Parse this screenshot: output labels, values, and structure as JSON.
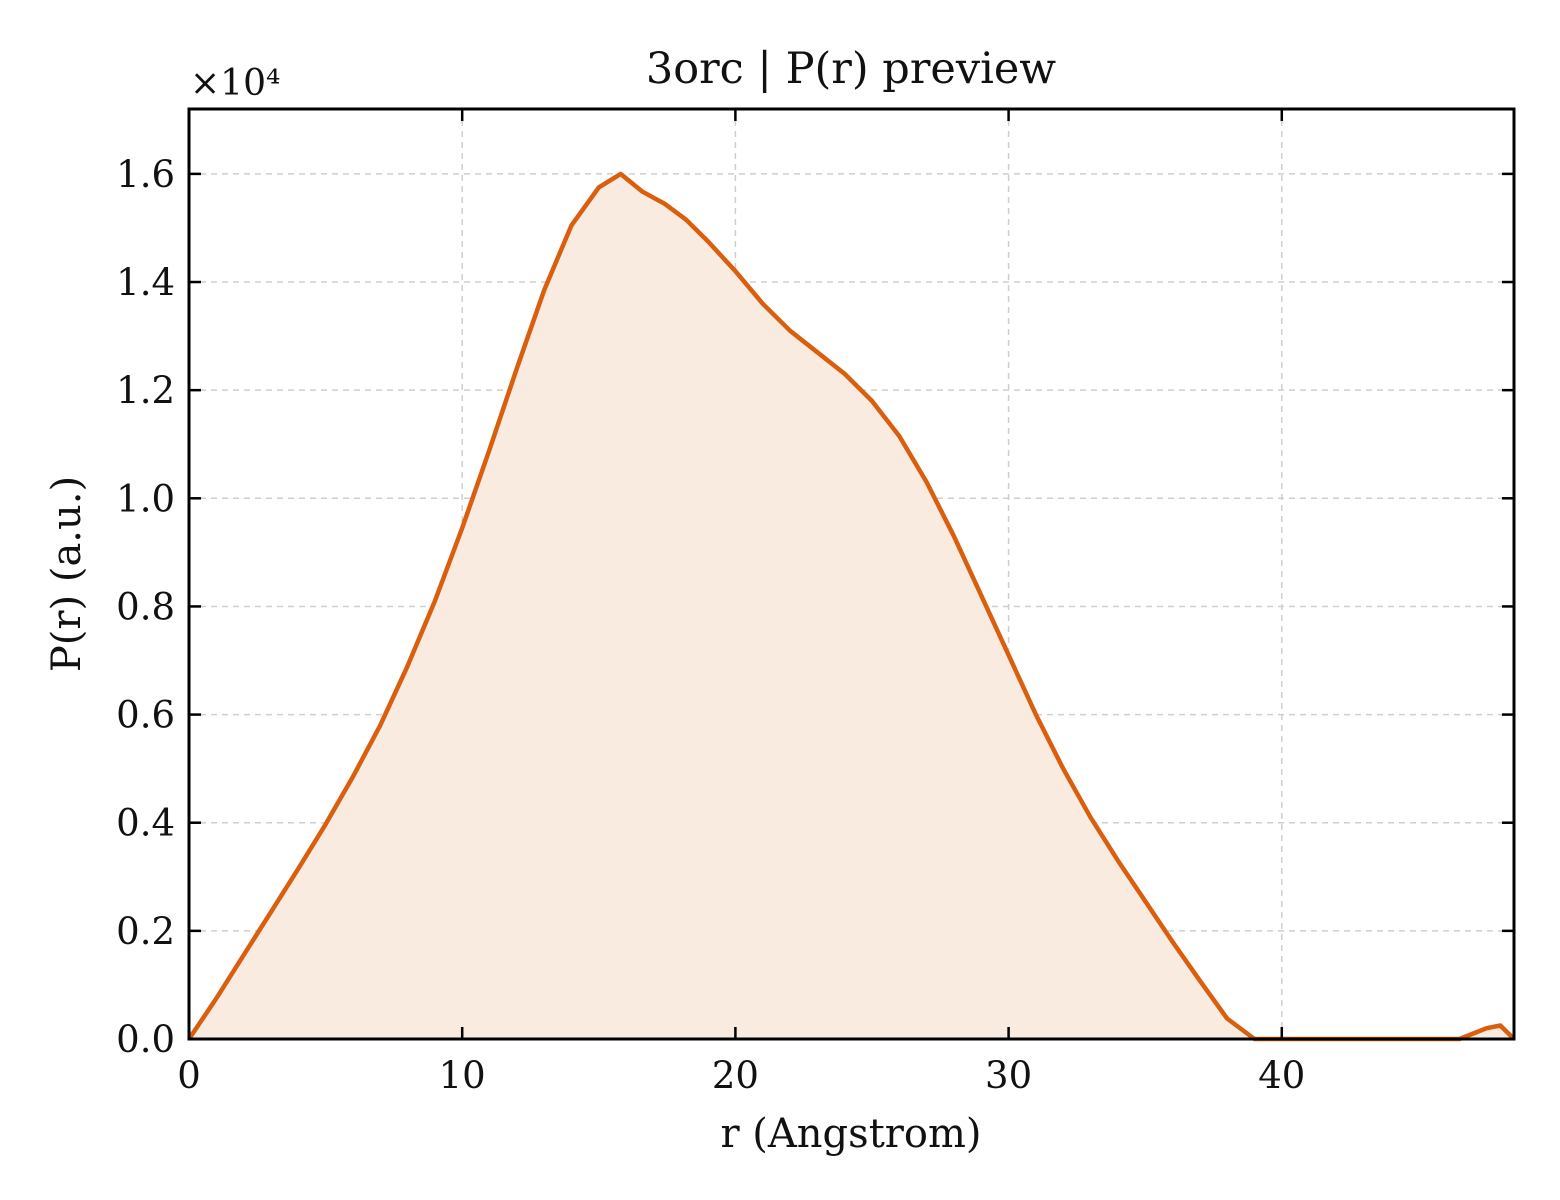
{
  "chart_data": {
    "type": "area",
    "title": "3orc | P(r) preview",
    "xlabel": "r (Angstrom)",
    "ylabel": "P(r) (a.u.)",
    "y_scale_label": "×10⁴",
    "y_multiplier": 10000,
    "xlim": [
      0,
      48.5
    ],
    "ylim": [
      0,
      1.72
    ],
    "x_ticks": [
      0,
      10,
      20,
      30,
      40
    ],
    "x_tick_labels": [
      "0",
      "10",
      "20",
      "30",
      "40"
    ],
    "y_ticks": [
      0.0,
      0.2,
      0.4,
      0.6,
      0.8,
      1.0,
      1.2,
      1.4,
      1.6
    ],
    "y_tick_labels": [
      "0.0",
      "0.2",
      "0.4",
      "0.6",
      "0.8",
      "1.0",
      "1.2",
      "1.4",
      "1.6"
    ],
    "grid": true,
    "colors": {
      "line": "#d95f0e",
      "fill": "#f9ebe0"
    },
    "series": [
      {
        "x": [
          0,
          1,
          2,
          3,
          4,
          5,
          6,
          7,
          8,
          9,
          10,
          11,
          12,
          13,
          14,
          15,
          15.8,
          16.6,
          17.4,
          18.2,
          19,
          20,
          21,
          22,
          23,
          24,
          25,
          26,
          27,
          28,
          29,
          30,
          31,
          32,
          33,
          34,
          35,
          36,
          37,
          38,
          39,
          40,
          41,
          42,
          43,
          44,
          45,
          45.5,
          46,
          46.5,
          47,
          47.5,
          48,
          48.5
        ],
        "y": [
          0.0,
          0.075,
          0.155,
          0.235,
          0.315,
          0.397,
          0.485,
          0.58,
          0.69,
          0.81,
          0.945,
          1.09,
          1.24,
          1.385,
          1.505,
          1.575,
          1.6,
          1.567,
          1.545,
          1.515,
          1.475,
          1.42,
          1.36,
          1.31,
          1.27,
          1.23,
          1.18,
          1.115,
          1.03,
          0.93,
          0.82,
          0.71,
          0.6,
          0.5,
          0.41,
          0.33,
          0.255,
          0.18,
          0.108,
          0.038,
          -0.01,
          -0.037,
          -0.05,
          -0.058,
          -0.05,
          -0.04,
          -0.025,
          0.0,
          0.0,
          0.0,
          0.01,
          0.02,
          0.025,
          0.0
        ]
      }
    ]
  }
}
